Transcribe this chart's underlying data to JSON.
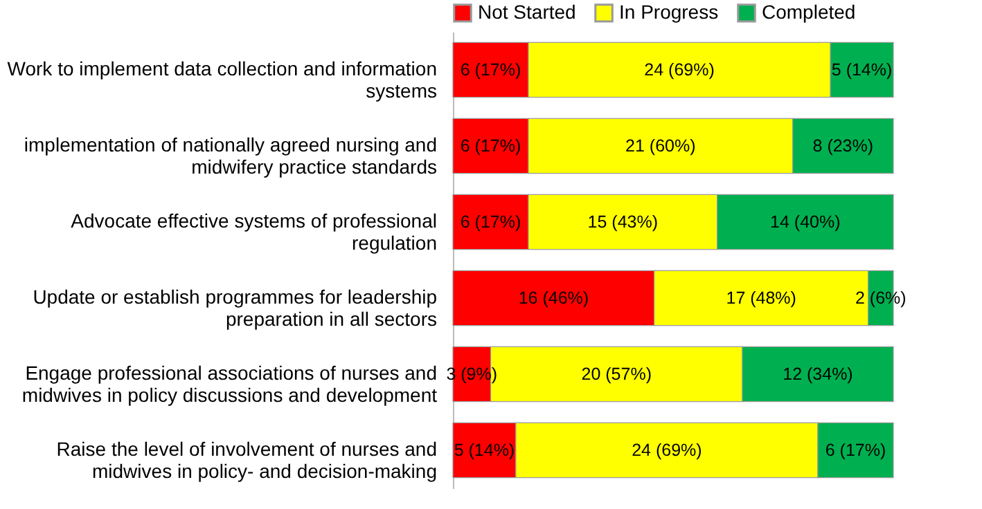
{
  "chart_data": {
    "type": "bar",
    "orientation": "horizontal",
    "stacked": true,
    "legend": "top",
    "data_labels": false,
    "categories": [
      "Work to implement data collection and information systems",
      "implementation of nationally agreed nursing and midwifery practice standards",
      "Advocate effective systems of professional regulation",
      "Update or establish programmes for leadership preparation in all sectors",
      "Engage professional associations of nurses and midwives in policy discussions and development",
      "Raise the level of involvement of nurses and midwives in policy- and decision-making"
    ],
    "series": [
      {
        "name": "Not Started",
        "color": "#ff0000",
        "values": [
          6,
          6,
          6,
          16,
          3,
          5
        ],
        "value_labels": [
          "6 (17%)",
          "6 (17%)",
          "6 (17%)",
          "16 (46%)",
          "3 (9%)",
          "5 (14%)"
        ]
      },
      {
        "name": "In Progress",
        "color": "#ffff00",
        "values": [
          24,
          21,
          15,
          17,
          20,
          24
        ],
        "value_labels": [
          "24 (69%)",
          "21 (60%)",
          "15 (43%)",
          "17 (48%)",
          "20 (57%)",
          "24 (69%)"
        ]
      },
      {
        "name": "Completed",
        "color": "#00b050",
        "values": [
          5,
          8,
          14,
          2,
          12,
          6
        ],
        "value_labels": [
          "5 (14%)",
          "8 (23%)",
          "14 (40%)",
          "2 (6%)",
          "12 (34%)",
          "6 (17%)"
        ]
      }
    ]
  }
}
